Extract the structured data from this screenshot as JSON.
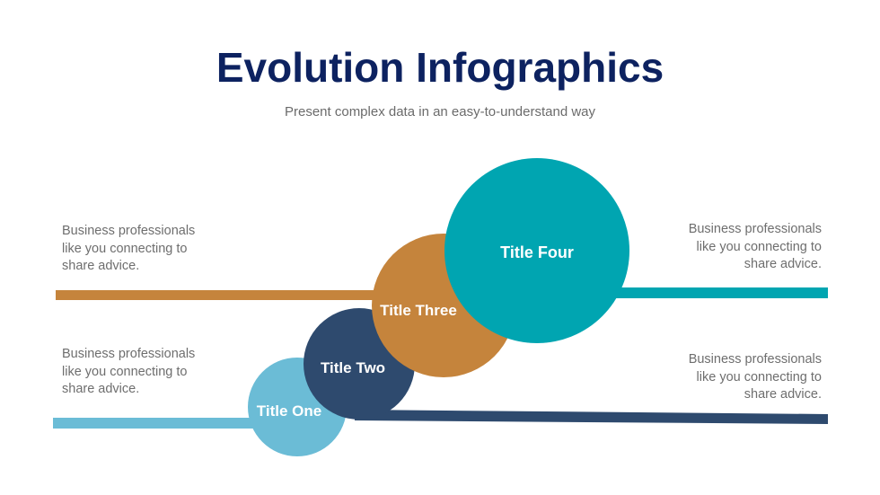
{
  "header": {
    "title": "Evolution Infographics",
    "subtitle": "Present complex data in an easy-to-understand way"
  },
  "stages": [
    {
      "title": "Title One",
      "color": "#6bbcd6",
      "text": "Business professionals like you connecting to share advice."
    },
    {
      "title": "Title Two",
      "color": "#2e4a6e",
      "text": "Business professionals like you connecting to share advice."
    },
    {
      "title": "Title Three",
      "color": "#c5843c",
      "text": "Business professionals like you connecting to share advice."
    },
    {
      "title": "Title Four",
      "color": "#00a5b1",
      "text": "Business professionals like you connecting to share advice."
    }
  ]
}
